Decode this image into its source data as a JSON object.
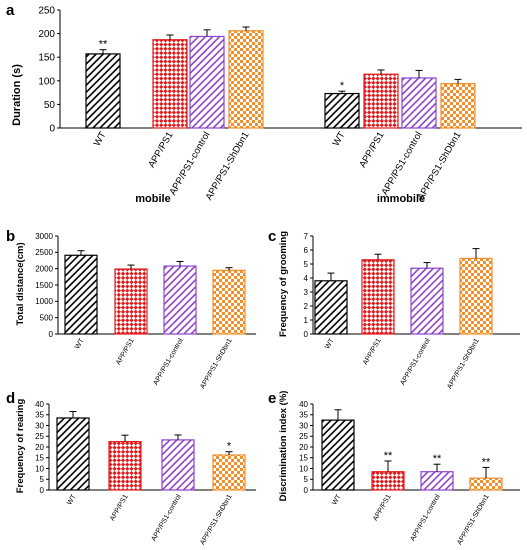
{
  "patterns": {
    "WT": {
      "color": "#000000",
      "style": "diagonal-stripes"
    },
    "APP/PS1": {
      "color": "#e31a1c",
      "style": "diamond-check"
    },
    "APP/PS1-control": {
      "color": "#8e44c9",
      "style": "diagonal-stripes"
    },
    "APP/PS1-ShDbn1": {
      "color": "#f28e2b",
      "style": "checkerboard"
    }
  },
  "chart_data": [
    {
      "type": "bar",
      "panel": "a",
      "ylabel": "Duration (s)",
      "ylim": [
        0,
        250
      ],
      "yticks": [
        0,
        50,
        100,
        150,
        200,
        250
      ],
      "groups": [
        {
          "label": "mobile",
          "categories": [
            "WT",
            "APP/PS1",
            "APP/PS1-control",
            "APP/PS1-ShDbn1"
          ],
          "values": [
            157,
            187,
            194,
            206
          ],
          "errors": [
            9,
            10,
            14,
            8
          ],
          "annotations": [
            "**",
            "",
            "",
            ""
          ]
        },
        {
          "label": "immobile",
          "categories": [
            "WT",
            "APP/PS1",
            "APP/PS1-control",
            "APP/PS1-ShDbn1"
          ],
          "values": [
            73,
            114,
            106,
            94
          ],
          "errors": [
            5,
            9,
            16,
            9
          ],
          "annotations": [
            "*",
            "",
            "",
            ""
          ]
        }
      ]
    },
    {
      "type": "bar",
      "panel": "b",
      "ylabel": "Total distance(cm)",
      "ylim": [
        0,
        3000
      ],
      "yticks": [
        0,
        500,
        1000,
        1500,
        2000,
        2500,
        3000
      ],
      "categories": [
        "WT",
        "APP/PS1",
        "APP/PS1-control",
        "APP/PS1-ShDbn1"
      ],
      "values": [
        2410,
        1990,
        2080,
        1950
      ],
      "errors": [
        140,
        120,
        140,
        80
      ],
      "annotations": [
        "",
        "",
        "",
        ""
      ]
    },
    {
      "type": "bar",
      "panel": "c",
      "ylabel": "Frequency of grooming",
      "ylim": [
        0,
        7
      ],
      "yticks": [
        0,
        1,
        2,
        3,
        4,
        5,
        6,
        7
      ],
      "categories": [
        "WT",
        "APP/PS1",
        "APP/PS1-control",
        "APP/PS1-ShDbn1"
      ],
      "values": [
        3.8,
        5.3,
        4.7,
        5.4
      ],
      "errors": [
        0.55,
        0.4,
        0.4,
        0.7
      ],
      "annotations": [
        "",
        "",
        "",
        ""
      ]
    },
    {
      "type": "bar",
      "panel": "d",
      "ylabel": "Frequency of rearing",
      "ylim": [
        0,
        40
      ],
      "yticks": [
        0,
        5,
        10,
        15,
        20,
        25,
        30,
        35,
        40
      ],
      "categories": [
        "WT",
        "APP/PS1",
        "APP/PS1-control",
        "APP/PS1-ShDbn1"
      ],
      "values": [
        33.5,
        22.5,
        23.3,
        16.3
      ],
      "errors": [
        3,
        3,
        2.3,
        1.5
      ],
      "annotations": [
        "",
        "",
        "",
        "*"
      ]
    },
    {
      "type": "bar",
      "panel": "e",
      "ylabel": "Discrimination index (%)",
      "ylim": [
        0,
        40
      ],
      "yticks": [
        0,
        5,
        10,
        15,
        20,
        25,
        30,
        35,
        40
      ],
      "categories": [
        "WT",
        "APP/PS1",
        "APP/PS1-control",
        "APP/PS1-ShDbn1"
      ],
      "values": [
        32.5,
        8.5,
        8.5,
        5.5
      ],
      "errors": [
        4.8,
        5,
        3.5,
        5
      ],
      "annotations": [
        "",
        "**",
        "**",
        "**"
      ]
    }
  ]
}
